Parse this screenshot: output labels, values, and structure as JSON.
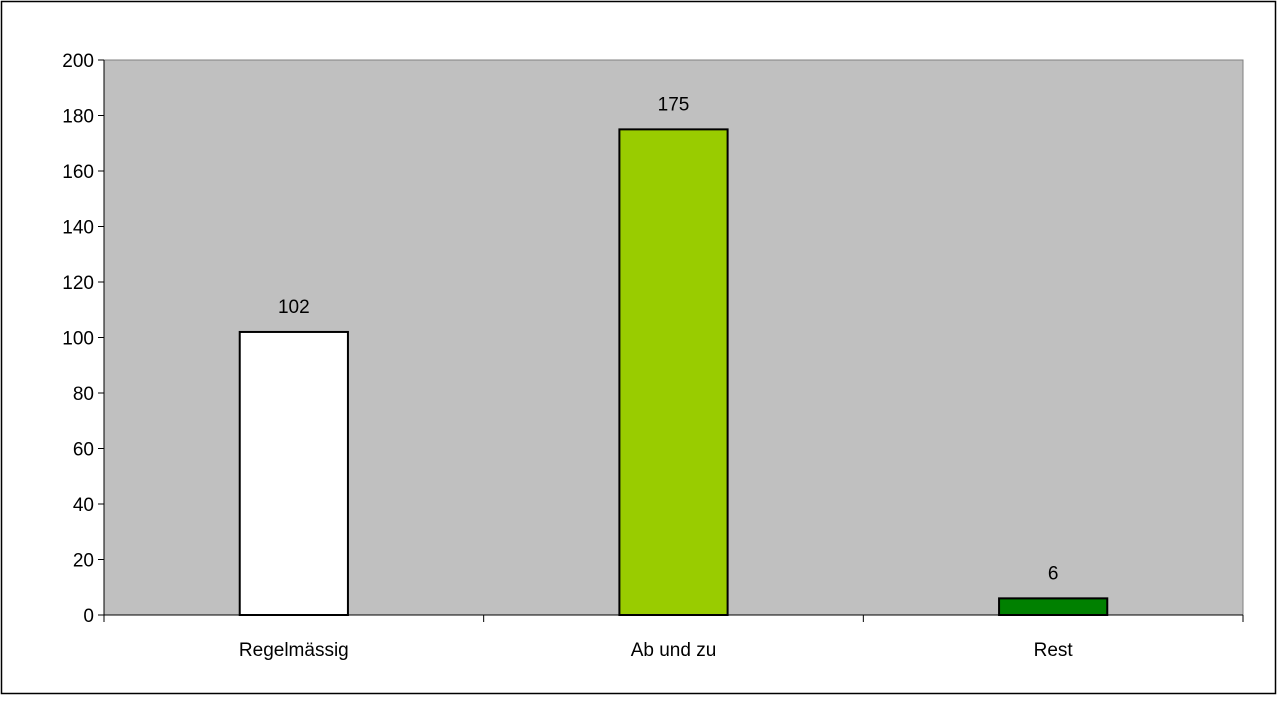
{
  "chart_data": {
    "type": "bar",
    "title": "",
    "xlabel": "",
    "ylabel": "",
    "categories": [
      "Regelmässig",
      "Ab und zu",
      "Rest"
    ],
    "values": [
      102,
      175,
      6
    ],
    "data_labels": [
      "102",
      "175",
      "6"
    ],
    "bar_colors": [
      "#ffffff",
      "#99cc00",
      "#008000"
    ],
    "ylim": [
      0,
      200
    ],
    "yticks": [
      0,
      20,
      40,
      60,
      80,
      100,
      120,
      140,
      160,
      180,
      200
    ],
    "plot_background": "#c0c0c0",
    "grid": false,
    "legend": "none"
  }
}
